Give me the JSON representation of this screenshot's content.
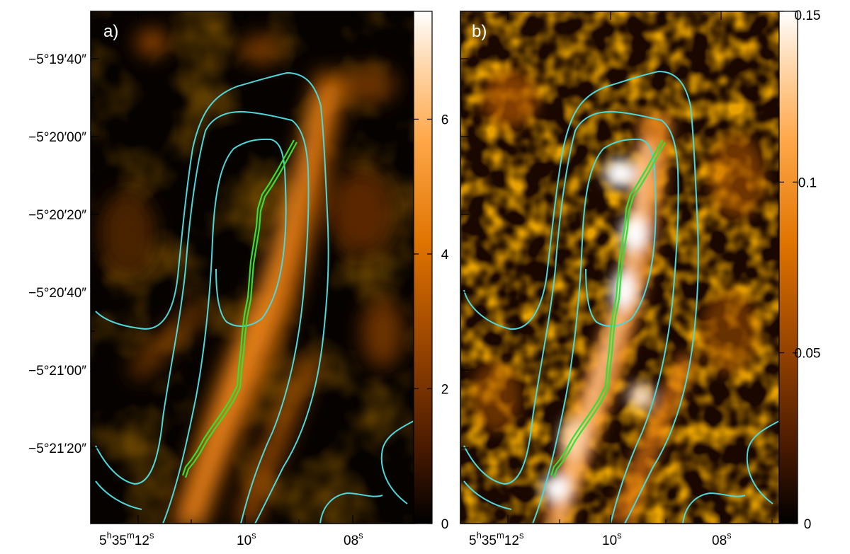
{
  "panels": [
    {
      "label": "a)",
      "colorbar": {
        "min": 0,
        "max": 7.6,
        "ticks": [
          "0",
          "2",
          "4",
          "6"
        ],
        "tick_values": [
          0,
          2,
          4,
          6
        ]
      }
    },
    {
      "label": "b)",
      "colorbar": {
        "min": 0,
        "max": 0.15,
        "ticks": [
          "0",
          "0.05",
          "0.1",
          "0.15"
        ],
        "tick_values": [
          0,
          0.05,
          0.1,
          0.15
        ]
      }
    }
  ],
  "dec_labels": [
    "−5°19′40″",
    "−5°20′00″",
    "−5°20′20″",
    "−5°20′40″",
    "−5°21′00″",
    "−5°21′20″"
  ],
  "ra_labels": {
    "first": {
      "base": "5",
      "h": "h",
      "mid": "35",
      "m": "m",
      "sec": "12",
      "s": "s"
    },
    "second": {
      "sec": "10",
      "s": "s"
    },
    "third": {
      "sec": "08",
      "s": "s"
    }
  },
  "colors": {
    "contour": "#4fd6d8",
    "spine": "#33e033",
    "colormap": [
      "#000000",
      "#4a1a00",
      "#9a4500",
      "#e07400",
      "#ffa84a",
      "#ffd9b0",
      "#ffffff"
    ]
  }
}
